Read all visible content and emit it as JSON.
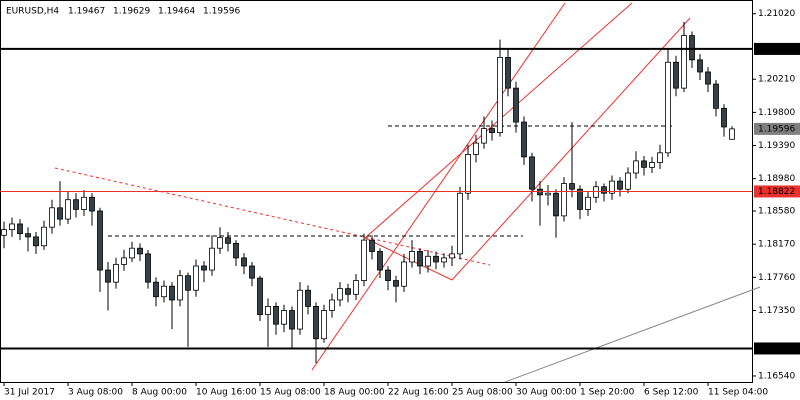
{
  "header": {
    "symbol": "EURUSD,H4",
    "open": "1.19467",
    "high": "1.19629",
    "low": "1.19464",
    "close": "1.19596"
  },
  "chart_data": {
    "type": "candlestick",
    "categories": [
      "31 Jul 2017",
      null,
      null,
      null,
      null,
      null,
      null,
      null,
      "3 Aug 08:00",
      null,
      null,
      null,
      null,
      null,
      null,
      null,
      "8 Aug 00:00",
      null,
      null,
      null,
      null,
      null,
      null,
      null,
      "10 Aug 16:00",
      null,
      null,
      null,
      null,
      null,
      null,
      null,
      "15 Aug 08:00",
      null,
      null,
      null,
      null,
      null,
      null,
      null,
      "18 Aug 00:00",
      null,
      null,
      null,
      null,
      null,
      null,
      null,
      "22 Aug 16:00",
      null,
      null,
      null,
      null,
      null,
      null,
      null,
      "25 Aug 08:00",
      null,
      null,
      null,
      null,
      null,
      null,
      null,
      "30 Aug 00:00",
      null,
      null,
      null,
      null,
      null,
      null,
      null,
      "1 Sep 20:00",
      null,
      null,
      null,
      null,
      null,
      null,
      null,
      "6 Sep 12:00",
      null,
      null,
      null,
      null,
      null,
      null,
      null,
      "11 Sep 04:00",
      null,
      null,
      null
    ],
    "open": [
      1.1828,
      1.1835,
      1.1842,
      1.183,
      1.1826,
      1.1815,
      1.1838,
      1.1862,
      1.1848,
      1.1872,
      1.186,
      1.1875,
      1.1858,
      1.1785,
      1.177,
      1.1792,
      1.18,
      1.1812,
      1.1805,
      1.177,
      1.1752,
      1.1765,
      1.1748,
      1.1778,
      1.176,
      1.179,
      1.1785,
      1.1812,
      1.1825,
      1.1818,
      1.18,
      1.179,
      1.1775,
      1.173,
      1.174,
      1.1718,
      1.1735,
      1.1712,
      1.176,
      1.174,
      1.17,
      1.1735,
      1.1748,
      1.1762,
      1.1755,
      1.1772,
      1.1822,
      1.1808,
      1.1785,
      1.1772,
      1.1765,
      1.1795,
      1.1808,
      1.179,
      1.1802,
      1.1795,
      1.18,
      1.1805,
      1.188,
      1.1928,
      1.1942,
      1.196,
      1.1955,
      1.2048,
      1.201,
      1.1968,
      1.1925,
      1.1885,
      1.1878,
      1.188,
      1.1852,
      1.1892,
      1.1885,
      1.186,
      1.1875,
      1.1888,
      1.188,
      1.1895,
      1.1885,
      1.1905,
      1.192,
      1.1912,
      1.1918,
      1.193,
      1.2042,
      1.201,
      1.2075,
      1.2045,
      1.203,
      1.2015,
      1.1985,
      1.19467
    ],
    "high": [
      1.1845,
      1.185,
      1.1848,
      1.1838,
      1.1832,
      1.1846,
      1.1872,
      1.1895,
      1.1882,
      1.188,
      1.1884,
      1.188,
      1.1862,
      1.1795,
      1.18,
      1.181,
      1.182,
      1.1818,
      1.181,
      1.1776,
      1.1772,
      1.177,
      1.1785,
      1.1782,
      1.1798,
      1.1796,
      1.1828,
      1.1838,
      1.1832,
      1.1822,
      1.1806,
      1.1795,
      1.1778,
      1.175,
      1.1745,
      1.1742,
      1.174,
      1.177,
      1.1766,
      1.1745,
      1.1742,
      1.1756,
      1.177,
      1.1768,
      1.178,
      1.183,
      1.1828,
      1.1812,
      1.179,
      1.1778,
      1.1805,
      1.1822,
      1.1812,
      1.181,
      1.1808,
      1.1806,
      1.1815,
      1.1888,
      1.194,
      1.1952,
      1.1975,
      1.197,
      1.207,
      1.2058,
      1.2018,
      1.1975,
      1.193,
      1.1895,
      1.189,
      1.1885,
      1.19,
      1.1968,
      1.189,
      1.1882,
      1.1895,
      1.1892,
      1.1902,
      1.19,
      1.1912,
      1.1932,
      1.1926,
      1.1925,
      1.194,
      1.2058,
      1.205,
      1.2092,
      1.208,
      1.2052,
      1.2036,
      1.202,
      1.199,
      1.19629
    ],
    "low": [
      1.1812,
      1.1826,
      1.1822,
      1.1808,
      1.1805,
      1.181,
      1.183,
      1.184,
      1.1842,
      1.185,
      1.1852,
      1.184,
      1.1758,
      1.1735,
      1.1762,
      1.1784,
      1.1795,
      1.1796,
      1.1762,
      1.174,
      1.1745,
      1.1712,
      1.174,
      1.169,
      1.1752,
      1.177,
      1.1778,
      1.1805,
      1.1808,
      1.179,
      1.178,
      1.1765,
      1.1722,
      1.169,
      1.1705,
      1.1708,
      1.1688,
      1.1705,
      1.173,
      1.167,
      1.1695,
      1.1726,
      1.174,
      1.1745,
      1.1748,
      1.1765,
      1.1798,
      1.1775,
      1.176,
      1.1745,
      1.1758,
      1.1788,
      1.178,
      1.1782,
      1.1786,
      1.1788,
      1.179,
      1.1798,
      1.1872,
      1.1918,
      1.1935,
      1.1945,
      1.195,
      1.2,
      1.1955,
      1.1915,
      1.187,
      1.184,
      1.1865,
      1.1825,
      1.1845,
      1.1875,
      1.1848,
      1.1852,
      1.1868,
      1.187,
      1.1872,
      1.1876,
      1.188,
      1.1898,
      1.1902,
      1.1905,
      1.191,
      1.1925,
      1.2,
      1.2005,
      1.2035,
      1.202,
      1.2005,
      1.1975,
      1.195,
      1.19464
    ],
    "close": [
      1.1835,
      1.1842,
      1.183,
      1.1826,
      1.1815,
      1.1838,
      1.1862,
      1.1848,
      1.1872,
      1.186,
      1.1875,
      1.1858,
      1.1785,
      1.177,
      1.1792,
      1.18,
      1.1812,
      1.1805,
      1.177,
      1.1752,
      1.1765,
      1.1748,
      1.1778,
      1.176,
      1.179,
      1.1785,
      1.1812,
      1.1825,
      1.1818,
      1.18,
      1.179,
      1.1775,
      1.173,
      1.174,
      1.1718,
      1.1735,
      1.1712,
      1.176,
      1.174,
      1.17,
      1.1735,
      1.1748,
      1.1762,
      1.1755,
      1.1772,
      1.1822,
      1.1808,
      1.1785,
      1.1772,
      1.1765,
      1.1795,
      1.1808,
      1.179,
      1.1802,
      1.1795,
      1.18,
      1.1805,
      1.188,
      1.1928,
      1.1942,
      1.196,
      1.1955,
      1.2048,
      1.201,
      1.1968,
      1.1925,
      1.1885,
      1.1878,
      1.188,
      1.1852,
      1.1892,
      1.1885,
      1.186,
      1.1875,
      1.1888,
      1.188,
      1.1895,
      1.1885,
      1.1905,
      1.192,
      1.1912,
      1.1918,
      1.193,
      1.2042,
      1.201,
      1.2075,
      1.2045,
      1.203,
      1.2015,
      1.1985,
      1.1962,
      1.19596
    ],
    "up_color": "#ffffff",
    "down_color": "#36414a",
    "ylim": [
      1.1649,
      1.2119
    ],
    "yticks": [
      {
        "value": 1.2102,
        "label": "1.21020"
      },
      {
        "value": 1.2021,
        "label": "1.20210"
      },
      {
        "value": 1.198,
        "label": "1.19800"
      },
      {
        "value": 1.1939,
        "label": "1.19390"
      },
      {
        "value": 1.1898,
        "label": "1.18980"
      },
      {
        "value": 1.1858,
        "label": "1.18580"
      },
      {
        "value": 1.1817,
        "label": "1.18170"
      },
      {
        "value": 1.1776,
        "label": "1.17760"
      },
      {
        "value": 1.1735,
        "label": "1.17350"
      },
      {
        "value": 1.1654,
        "label": "1.16540"
      }
    ],
    "levels": [
      {
        "value": 1.20585,
        "color": "#000000",
        "line": true
      },
      {
        "value": 1.19596,
        "color": "#7f7f7f",
        "line": false
      },
      {
        "value": 1.18822,
        "color": "#e8322d",
        "line": true
      },
      {
        "value": {
          "value": 1.1688,
          "label": "1.16880"
        },
        "color": "#000000",
        "line": true
      }
    ]
  }
}
